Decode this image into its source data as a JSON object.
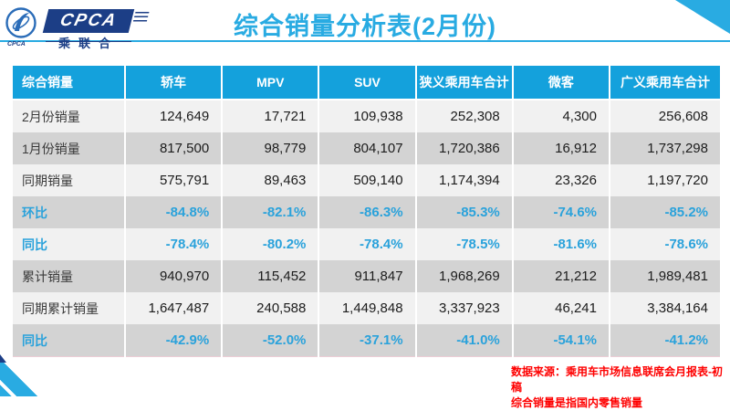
{
  "brand": {
    "logo_text": "CPCA",
    "logo_subtext": "乘联合",
    "emblem_caption": "CPCA"
  },
  "header": {
    "title": "综合销量分析表(2月份)"
  },
  "colors": {
    "accent_blue": "#29abe2",
    "table_header_blue": "#14a1dc",
    "percent_text_blue": "#2aa2db",
    "logo_navy": "#1c3e86",
    "row_light_gray": "#f1f1f1",
    "row_dark_gray": "#d3d3d3",
    "footnote_red": "#fe0000"
  },
  "table": {
    "columns": [
      "综合销量",
      "轿车",
      "MPV",
      "SUV",
      "狭义乘用车合计",
      "微客",
      "广义乘用车合计"
    ],
    "rows": [
      {
        "label": "2月份销量",
        "type": "number",
        "values": [
          "124,649",
          "17,721",
          "109,938",
          "252,308",
          "4,300",
          "256,608"
        ]
      },
      {
        "label": "1月份销量",
        "type": "number",
        "values": [
          "817,500",
          "98,779",
          "804,107",
          "1,720,386",
          "16,912",
          "1,737,298"
        ]
      },
      {
        "label": "同期销量",
        "type": "number",
        "values": [
          "575,791",
          "89,463",
          "509,140",
          "1,174,394",
          "23,326",
          "1,197,720"
        ]
      },
      {
        "label": "环比",
        "type": "percent",
        "values": [
          "-84.8%",
          "-82.1%",
          "-86.3%",
          "-85.3%",
          "-74.6%",
          "-85.2%"
        ]
      },
      {
        "label": "同比",
        "type": "percent",
        "values": [
          "-78.4%",
          "-80.2%",
          "-78.4%",
          "-78.5%",
          "-81.6%",
          "-78.6%"
        ]
      },
      {
        "label": "累计销量",
        "type": "number",
        "values": [
          "940,970",
          "115,452",
          "911,847",
          "1,968,269",
          "21,212",
          "1,989,481"
        ]
      },
      {
        "label": "同期累计销量",
        "type": "number",
        "values": [
          "1,647,487",
          "240,588",
          "1,449,848",
          "3,337,923",
          "46,241",
          "3,384,164"
        ]
      },
      {
        "label": "同比",
        "type": "percent",
        "values": [
          "-42.9%",
          "-52.0%",
          "-37.1%",
          "-41.0%",
          "-54.1%",
          "-41.2%"
        ]
      }
    ]
  },
  "footer": {
    "source_note": "数据来源：乘用车市场信息联席会月报表-初稿",
    "definition_note": "综合销量是指国内零售销量"
  }
}
